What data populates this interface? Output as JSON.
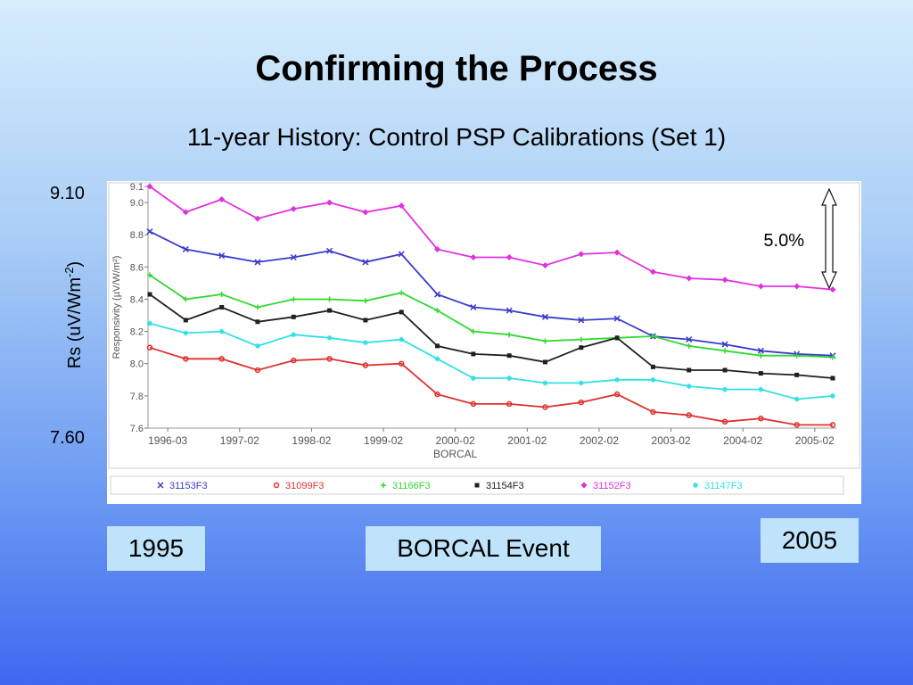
{
  "slide": {
    "title": "Confirming the Process",
    "subtitle": "11-year History:  Control PSP Calibrations (Set 1)",
    "y_top": "9.10",
    "y_bottom": "7.60",
    "y_axis_label": "Rs (uV/Wm",
    "y_axis_label_sup": "-2",
    "y_axis_label_end": ")",
    "tag_1995": "1995",
    "tag_borcal": "BORCAL Event",
    "tag_2005": "2005"
  },
  "chart_data": {
    "type": "line",
    "ylabel": "Responsivity (µV/W/m²)",
    "xlabel": "BORCAL",
    "ylim": [
      7.6,
      9.1
    ],
    "yticks": [
      "9.1",
      "9.0",
      "8.8",
      "8.6",
      "8.4",
      "8.2",
      "8.0",
      "7.8",
      "7.6"
    ],
    "ytick_values": [
      9.1,
      9.0,
      8.8,
      8.6,
      8.4,
      8.2,
      8.0,
      7.8,
      7.6
    ],
    "x_tick_labels": [
      "1996-03",
      "1997-02",
      "1998-02",
      "1999-02",
      "2000-02",
      "2001-02",
      "2002-02",
      "2003-02",
      "2004-02",
      "2005-02"
    ],
    "x_tick_index": [
      0.5,
      2.5,
      4.5,
      6.5,
      8.5,
      10.5,
      12.5,
      14.5,
      16.5,
      18.5
    ],
    "annotation": "5.0%",
    "grid": false,
    "legend_position": "bottom",
    "series": [
      {
        "name": "31153F3",
        "color": "#3a3acc",
        "marker": "x",
        "values": [
          8.82,
          8.71,
          8.67,
          8.63,
          8.66,
          8.7,
          8.63,
          8.68,
          8.43,
          8.35,
          8.33,
          8.29,
          8.27,
          8.28,
          8.17,
          8.15,
          8.12,
          8.08,
          8.06,
          8.05
        ]
      },
      {
        "name": "31099F3",
        "color": "#e03030",
        "marker": "o",
        "values": [
          8.1,
          8.03,
          8.03,
          7.96,
          8.02,
          8.03,
          7.99,
          8.0,
          7.81,
          7.75,
          7.75,
          7.73,
          7.76,
          7.81,
          7.7,
          7.68,
          7.64,
          7.66,
          7.62,
          7.62
        ]
      },
      {
        "name": "31166F3",
        "color": "#30d830",
        "marker": "+",
        "values": [
          8.55,
          8.4,
          8.43,
          8.35,
          8.4,
          8.4,
          8.39,
          8.44,
          8.33,
          8.2,
          8.18,
          8.14,
          8.15,
          8.16,
          8.17,
          8.11,
          8.08,
          8.05,
          8.05,
          8.04
        ]
      },
      {
        "name": "31154F3",
        "color": "#202020",
        "marker": "s",
        "values": [
          8.43,
          8.27,
          8.35,
          8.26,
          8.29,
          8.33,
          8.27,
          8.32,
          8.11,
          8.06,
          8.05,
          8.01,
          8.1,
          8.16,
          7.98,
          7.96,
          7.96,
          7.94,
          7.93,
          7.91
        ]
      },
      {
        "name": "31152F3",
        "color": "#e030e0",
        "marker": "d",
        "values": [
          9.1,
          8.94,
          9.02,
          8.9,
          8.96,
          9.0,
          8.94,
          8.98,
          8.71,
          8.66,
          8.66,
          8.61,
          8.68,
          8.69,
          8.57,
          8.53,
          8.52,
          8.48,
          8.48,
          8.46
        ]
      },
      {
        "name": "31147F3",
        "color": "#30e0e0",
        "marker": "*",
        "values": [
          8.25,
          8.19,
          8.2,
          8.11,
          8.18,
          8.16,
          8.13,
          8.15,
          8.03,
          7.91,
          7.91,
          7.88,
          7.88,
          7.9,
          7.9,
          7.86,
          7.84,
          7.84,
          7.78,
          7.8
        ]
      }
    ]
  }
}
